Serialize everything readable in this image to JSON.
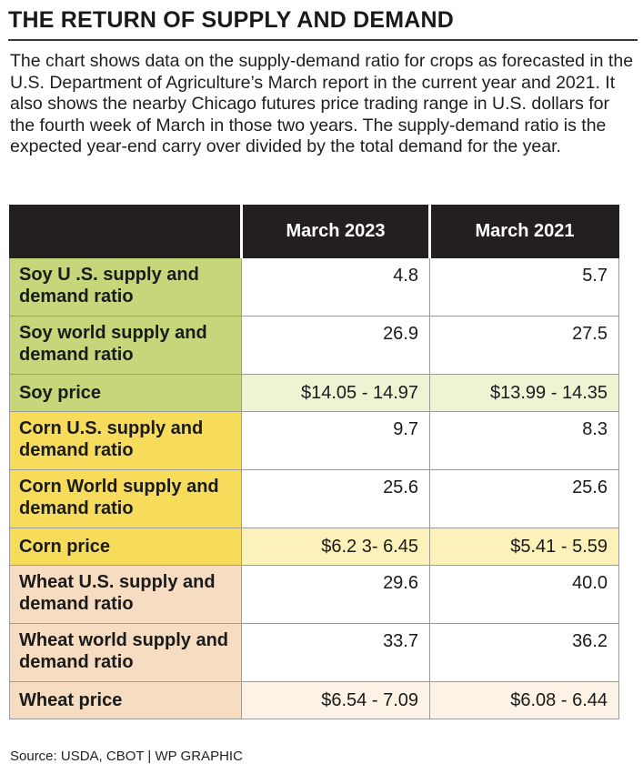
{
  "title": "THE RETURN OF SUPPLY AND DEMAND",
  "description": "The chart shows data on the supply-demand ratio for crops as forecasted in the U.S. Department of Agriculture’s March report in the current year and 2021. It also shows the nearby Chicago futures price trading range in U.S. dollars for the fourth week of March in those two years. The supply-demand ratio is the expected year-end carry over divided by the total demand for the year.",
  "source": "Source: USDA, CBOT  |  WP GRAPHIC",
  "colors": {
    "header_bg": "#231f20",
    "soy_label": "#c6d67a",
    "soy_price_row": "#eef3d4",
    "corn_label": "#f7dc5c",
    "corn_price_row": "#fcf1b8",
    "wheat_label": "#f6dcc0",
    "wheat_price_row": "#fcf3e6"
  },
  "chart_data": {
    "type": "table",
    "columns": [
      "",
      "March 2023",
      "March 2021"
    ],
    "rows": [
      {
        "label": "Soy U .S. supply and demand ratio",
        "values": [
          "4.8",
          "5.7"
        ],
        "group": "soy",
        "kind": "ratio"
      },
      {
        "label": "Soy world supply and demand ratio",
        "values": [
          "26.9",
          "27.5"
        ],
        "group": "soy",
        "kind": "ratio"
      },
      {
        "label": "Soy price",
        "values": [
          "$14.05 - 14.97",
          "$13.99 - 14.35"
        ],
        "group": "soy",
        "kind": "price"
      },
      {
        "label": "Corn U.S. supply and demand ratio",
        "values": [
          "9.7",
          "8.3"
        ],
        "group": "corn",
        "kind": "ratio"
      },
      {
        "label": "Corn World supply and demand ratio",
        "values": [
          "25.6",
          "25.6"
        ],
        "group": "corn",
        "kind": "ratio"
      },
      {
        "label": "Corn price",
        "values": [
          "$6.2 3- 6.45",
          "$5.41 - 5.59"
        ],
        "group": "corn",
        "kind": "price"
      },
      {
        "label": "Wheat U.S. supply and demand ratio",
        "values": [
          "29.6",
          "40.0"
        ],
        "group": "wheat",
        "kind": "ratio"
      },
      {
        "label": "Wheat world supply and demand ratio",
        "values": [
          "33.7",
          "36.2"
        ],
        "group": "wheat",
        "kind": "ratio"
      },
      {
        "label": "Wheat price",
        "values": [
          "$6.54 - 7.09",
          "$6.08 - 6.44"
        ],
        "group": "wheat",
        "kind": "price"
      }
    ]
  }
}
